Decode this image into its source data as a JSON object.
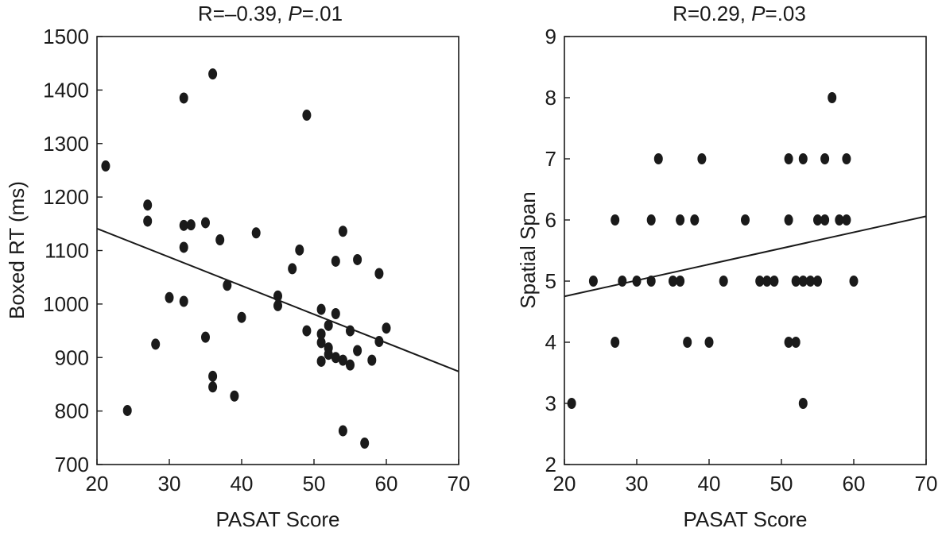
{
  "chart_data": [
    {
      "type": "scatter",
      "title": "R=–0.39, P=.01",
      "title_prefix": "R=–0.39, ",
      "title_italic": "P",
      "title_suffix": "=.01",
      "xlabel": "PASAT Score",
      "ylabel": "Boxed RT (ms)",
      "xlim": [
        20,
        70
      ],
      "ylim": [
        700,
        1500
      ],
      "xticks": [
        20,
        30,
        40,
        50,
        60,
        70
      ],
      "yticks": [
        700,
        800,
        900,
        1000,
        1100,
        1200,
        1300,
        1400,
        1500
      ],
      "points": [
        [
          21.2,
          1258
        ],
        [
          24.2,
          801
        ],
        [
          27,
          1185
        ],
        [
          27,
          1155
        ],
        [
          28.1,
          925
        ],
        [
          30,
          1012
        ],
        [
          32,
          1385
        ],
        [
          32,
          1147
        ],
        [
          32,
          1106
        ],
        [
          32,
          1005
        ],
        [
          33,
          1148
        ],
        [
          35,
          1152
        ],
        [
          35,
          938
        ],
        [
          36,
          1430
        ],
        [
          36,
          865
        ],
        [
          36,
          845
        ],
        [
          37,
          1120
        ],
        [
          38,
          1035
        ],
        [
          39,
          828
        ],
        [
          40,
          975
        ],
        [
          42,
          1133
        ],
        [
          45,
          1015
        ],
        [
          45,
          997
        ],
        [
          47,
          1066
        ],
        [
          48,
          1101
        ],
        [
          49,
          1353
        ],
        [
          49,
          950
        ],
        [
          51,
          990
        ],
        [
          51,
          944
        ],
        [
          51,
          928
        ],
        [
          51,
          893
        ],
        [
          52,
          960
        ],
        [
          52,
          918
        ],
        [
          52,
          906
        ],
        [
          53,
          982
        ],
        [
          53,
          1080
        ],
        [
          53,
          900
        ],
        [
          54,
          1136
        ],
        [
          54,
          895
        ],
        [
          54,
          763
        ],
        [
          55,
          950
        ],
        [
          55,
          886
        ],
        [
          56,
          1083
        ],
        [
          56,
          913
        ],
        [
          57,
          740
        ],
        [
          58,
          895
        ],
        [
          59,
          1057
        ],
        [
          59,
          930
        ],
        [
          60,
          955
        ]
      ],
      "fit_line": {
        "x": [
          20,
          70
        ],
        "y": [
          1141,
          874
        ]
      }
    },
    {
      "type": "scatter",
      "title": "R=0.29, P=.03",
      "title_prefix": "R=0.29, ",
      "title_italic": "P",
      "title_suffix": "=.03",
      "xlabel": "PASAT Score",
      "ylabel": "Spatial Span",
      "xlim": [
        20,
        70
      ],
      "ylim": [
        2,
        9
      ],
      "xticks": [
        20,
        30,
        40,
        50,
        60,
        70
      ],
      "yticks": [
        2,
        3,
        4,
        5,
        6,
        7,
        8,
        9
      ],
      "points": [
        [
          21,
          3
        ],
        [
          24,
          5
        ],
        [
          27,
          6
        ],
        [
          27,
          4
        ],
        [
          28,
          5
        ],
        [
          30,
          5
        ],
        [
          32,
          6
        ],
        [
          32,
          5
        ],
        [
          33,
          7
        ],
        [
          35,
          5
        ],
        [
          36,
          6
        ],
        [
          36,
          5
        ],
        [
          37,
          4
        ],
        [
          38,
          6
        ],
        [
          39,
          7
        ],
        [
          40,
          4
        ],
        [
          42,
          5
        ],
        [
          45,
          6
        ],
        [
          47,
          5
        ],
        [
          48,
          5
        ],
        [
          49,
          5
        ],
        [
          51,
          7
        ],
        [
          51,
          6
        ],
        [
          51,
          4
        ],
        [
          52,
          5
        ],
        [
          52,
          4
        ],
        [
          53,
          7
        ],
        [
          53,
          5
        ],
        [
          53,
          3
        ],
        [
          54,
          5
        ],
        [
          55,
          6
        ],
        [
          55,
          5
        ],
        [
          56,
          7
        ],
        [
          56,
          6
        ],
        [
          57,
          8
        ],
        [
          58,
          6
        ],
        [
          59,
          7
        ],
        [
          59,
          6
        ],
        [
          60,
          5
        ]
      ],
      "fit_line": {
        "x": [
          20,
          70
        ],
        "y": [
          4.75,
          6.06
        ]
      }
    }
  ]
}
